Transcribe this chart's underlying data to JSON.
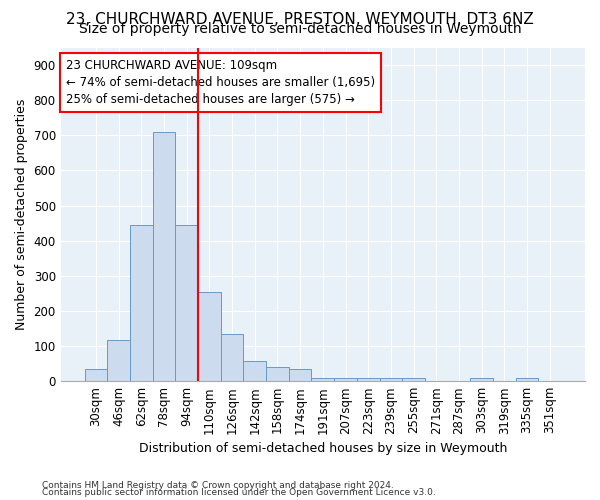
{
  "title": "23, CHURCHWARD AVENUE, PRESTON, WEYMOUTH, DT3 6NZ",
  "subtitle": "Size of property relative to semi-detached houses in Weymouth",
  "xlabel": "Distribution of semi-detached houses by size in Weymouth",
  "ylabel": "Number of semi-detached properties",
  "categories": [
    "30sqm",
    "46sqm",
    "62sqm",
    "78sqm",
    "94sqm",
    "110sqm",
    "126sqm",
    "142sqm",
    "158sqm",
    "174sqm",
    "191sqm",
    "207sqm",
    "223sqm",
    "239sqm",
    "255sqm",
    "271sqm",
    "287sqm",
    "303sqm",
    "319sqm",
    "335sqm",
    "351sqm"
  ],
  "values": [
    35,
    118,
    445,
    710,
    445,
    253,
    135,
    58,
    40,
    35,
    10,
    8,
    8,
    8,
    8,
    0,
    0,
    8,
    0,
    8,
    0
  ],
  "bar_color": "#ccdcee",
  "bar_edge_color": "#6699cc",
  "red_line_x": 4.5,
  "annotation_line1": "23 CHURCHWARD AVENUE: 109sqm",
  "annotation_line2": "← 74% of semi-detached houses are smaller (1,695)",
  "annotation_line3": "25% of semi-detached houses are larger (575) →",
  "footnote1": "Contains HM Land Registry data © Crown copyright and database right 2024.",
  "footnote2": "Contains public sector information licensed under the Open Government Licence v3.0.",
  "ylim": [
    0,
    950
  ],
  "yticks": [
    0,
    100,
    200,
    300,
    400,
    500,
    600,
    700,
    800,
    900
  ],
  "bg_color": "#e8f0f8",
  "grid_color": "#ffffff",
  "fig_bg": "#ffffff",
  "title_fontsize": 11,
  "subtitle_fontsize": 10,
  "axis_label_fontsize": 9,
  "tick_fontsize": 8.5
}
